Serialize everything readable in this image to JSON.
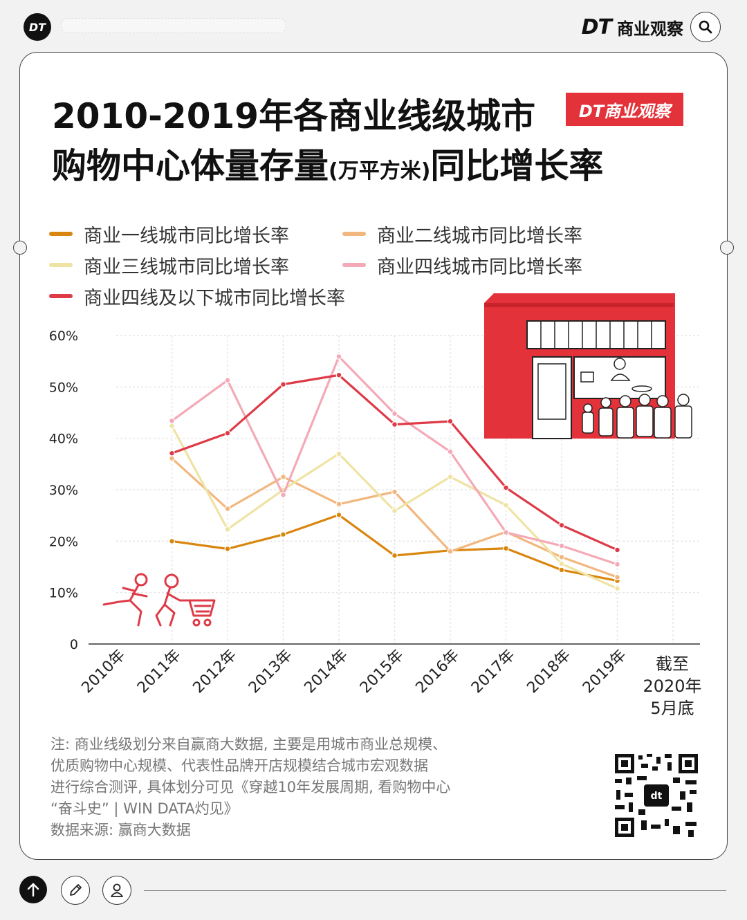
{
  "header": {
    "logo_text": "DT",
    "brand_mark": "DT",
    "brand_name": "商业观察",
    "search_icon": "search-icon"
  },
  "title": {
    "line1": "2010-2019年各商业线级城市",
    "line2_main": "购物中心体量存量",
    "line2_unit": "(万平方米)",
    "line2_tail": "同比增长率",
    "badge": "DT商业观察"
  },
  "legend": [
    {
      "label": "商业一线城市同比增长率",
      "color": "#d9860e"
    },
    {
      "label": "商业二线城市同比增长率",
      "color": "#f2b77e"
    },
    {
      "label": "商业三线城市同比增长率",
      "color": "#efe3a4"
    },
    {
      "label": "商业四线城市同比增长率",
      "color": "#f4a9b6"
    },
    {
      "label": "商业四线及以下城市同比增长率",
      "color": "#de3a47"
    }
  ],
  "chart_data": {
    "type": "line",
    "categories": [
      "2010年",
      "2011年",
      "2012年",
      "2013年",
      "2014年",
      "2015年",
      "2016年",
      "2017年",
      "2018年",
      "2019年",
      "截至2020年5月底"
    ],
    "last_category_lines": [
      "截至",
      "2020年",
      "5月底"
    ],
    "y_ticks": [
      "0",
      "10%",
      "20%",
      "30%",
      "40%",
      "50%",
      "60%"
    ],
    "ylim": [
      0,
      60
    ],
    "grid": true,
    "legend_position": "top",
    "series": [
      {
        "name": "商业一线城市同比增长率",
        "color": "#d9860e",
        "values": [
          null,
          20.0,
          18.5,
          21.3,
          25.1,
          17.2,
          18.2,
          18.6,
          14.4,
          12.3,
          null
        ]
      },
      {
        "name": "商业二线城市同比增长率",
        "color": "#f2b77e",
        "values": [
          null,
          36.1,
          26.3,
          32.5,
          27.2,
          29.6,
          18.0,
          21.8,
          16.9,
          13.0,
          null
        ]
      },
      {
        "name": "商业三线城市同比增长率",
        "color": "#efe3a4",
        "values": [
          null,
          42.4,
          22.3,
          30.0,
          37.0,
          25.9,
          32.5,
          27.0,
          15.6,
          10.8,
          null
        ]
      },
      {
        "name": "商业四线城市同比增长率",
        "color": "#f4a9b6",
        "values": [
          null,
          43.4,
          51.3,
          29.0,
          55.9,
          44.8,
          37.4,
          21.7,
          19.1,
          15.5,
          null
        ]
      },
      {
        "name": "商业四线及以下城市同比增长率",
        "color": "#de3a47",
        "values": [
          null,
          37.1,
          41.0,
          50.5,
          52.3,
          42.7,
          43.3,
          30.4,
          23.1,
          18.3,
          null
        ]
      }
    ]
  },
  "note": {
    "lines": [
      "注: 商业线级划分来自赢商大数据, 主要是用城市商业总规模、",
      "优质购物中心规模、代表性品牌开店规模结合城市宏观数据",
      "进行综合测评, 具体划分可见《穿越10年发展周期, 看购物中心",
      "“奋斗史” | WIN DATA灼见》",
      "数据来源: 赢商大数据"
    ]
  },
  "toolbar": {
    "icons": [
      "arrow-up-icon",
      "pencil-icon",
      "user-icon"
    ]
  }
}
